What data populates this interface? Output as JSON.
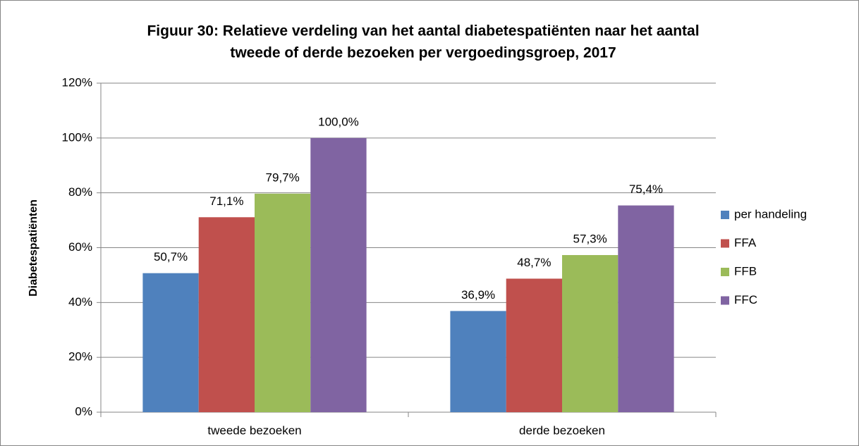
{
  "chart_data": {
    "type": "bar",
    "title": [
      "Figuur 30: Relatieve verdeling van het aantal diabetespatiënten naar het aantal",
      "tweede of derde bezoeken per vergoedingsgroep, 2017"
    ],
    "y_label": "Diabetespatiënten",
    "categories": [
      "tweede bezoeken",
      "derde bezoeken"
    ],
    "series": [
      {
        "name": "per handeling",
        "color": "#4f81bd",
        "values": [
          50.7,
          36.9
        ],
        "value_labels": [
          "50,7%",
          "36,9%"
        ]
      },
      {
        "name": "FFA",
        "color": "#c0504d",
        "values": [
          71.1,
          48.7
        ],
        "value_labels": [
          "71,1%",
          "48,7%"
        ]
      },
      {
        "name": "FFB",
        "color": "#9bbb59",
        "values": [
          79.7,
          57.3
        ],
        "value_labels": [
          "79,7%",
          "57,3%"
        ]
      },
      {
        "name": "FFC",
        "color": "#8064a2",
        "values": [
          100.0,
          75.4
        ],
        "value_labels": [
          "100,0%",
          "75,4%"
        ]
      }
    ],
    "ylim": [
      0,
      120
    ],
    "yticks": [
      {
        "value": 0,
        "label": "0%"
      },
      {
        "value": 20,
        "label": "20%"
      },
      {
        "value": 40,
        "label": "40%"
      },
      {
        "value": 60,
        "label": "60%"
      },
      {
        "value": 80,
        "label": "80%"
      },
      {
        "value": 100,
        "label": "100%"
      },
      {
        "value": 120,
        "label": "120%"
      }
    ],
    "grid": true,
    "legend": "right"
  }
}
